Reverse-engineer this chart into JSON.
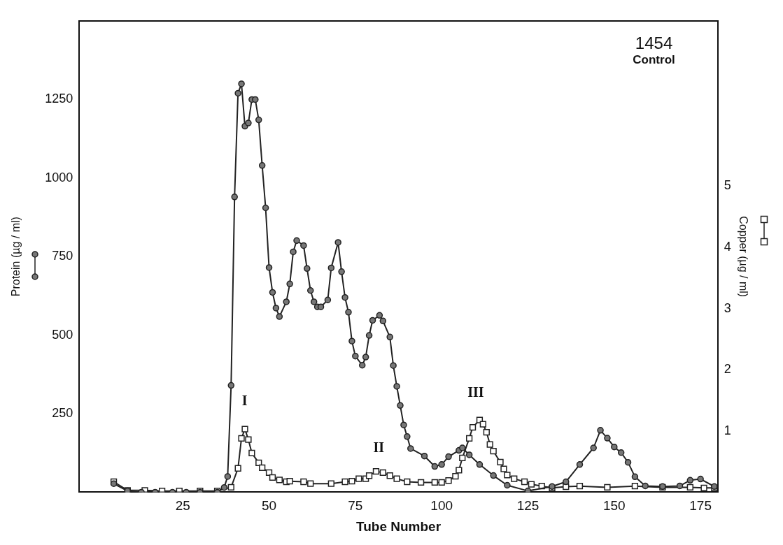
{
  "chart_data": {
    "type": "line",
    "xlabel": "Tube Number",
    "ylabel": "Protein (µg / ml)",
    "y2label": "Copper (µg / ml)",
    "annotations": [
      "1454",
      "Control",
      "I",
      "II",
      "III"
    ],
    "xlim": [
      -5,
      180
    ],
    "xticks": [
      25,
      50,
      75,
      100,
      125,
      150,
      175
    ],
    "ylim": [
      0,
      1500
    ],
    "yticks": [
      250,
      500,
      750,
      1000,
      1250
    ],
    "y2lim": [
      0,
      7.7
    ],
    "y2ticks": [
      1,
      2,
      3,
      4,
      5
    ],
    "grid": false,
    "legend": false,
    "series": [
      {
        "color": "#222222",
        "marker": "circle",
        "x": [
          5,
          9,
          13,
          17,
          22,
          26,
          30,
          35,
          37,
          38,
          39,
          40,
          41,
          42,
          43,
          44,
          45,
          46,
          47,
          48,
          49,
          50,
          51,
          52,
          53,
          55,
          56,
          57,
          58,
          60,
          61,
          62,
          63,
          64,
          65,
          67,
          68,
          70,
          71,
          72,
          73,
          74,
          75,
          77,
          78,
          79,
          80,
          82,
          83,
          85,
          86,
          87,
          88,
          89,
          90,
          91,
          95,
          98,
          100,
          102,
          105,
          106,
          108,
          111,
          115,
          119,
          125,
          132,
          136,
          140,
          144,
          146,
          148,
          150,
          152,
          154,
          156,
          159,
          164,
          169,
          172,
          175,
          179
        ],
        "values": [
          27,
          4,
          0,
          0,
          0,
          0,
          0,
          0,
          15,
          50,
          340,
          940,
          1270,
          1300,
          1165,
          1175,
          1250,
          1250,
          1185,
          1040,
          905,
          715,
          636,
          586,
          559,
          606,
          663,
          765,
          801,
          785,
          712,
          642,
          606,
          590,
          590,
          612,
          714,
          795,
          702,
          620,
          573,
          481,
          433,
          404,
          430,
          499,
          547,
          563,
          545,
          494,
          403,
          337,
          276,
          214,
          177,
          139,
          115,
          82,
          88,
          113,
          133,
          141,
          119,
          88,
          53,
          22,
          4,
          18,
          33,
          88,
          141,
          197,
          172,
          144,
          126,
          95,
          49,
          20,
          18,
          20,
          38,
          42,
          18
        ]
      },
      {
        "color": "#222222",
        "marker": "square",
        "axis": "y2",
        "x": [
          5,
          9,
          14,
          19,
          24,
          30,
          35,
          39,
          41,
          42,
          43,
          44,
          45,
          47,
          48,
          50,
          51,
          53,
          55,
          56,
          60,
          62,
          68,
          72,
          74,
          76,
          78,
          79,
          81,
          83,
          85,
          87,
          90,
          94,
          98,
          100,
          102,
          104,
          105,
          106,
          108,
          109,
          111,
          112,
          113,
          114,
          115,
          117,
          118,
          119,
          121,
          124,
          126,
          129,
          132,
          136,
          140,
          148,
          156,
          164,
          172,
          176,
          179
        ],
        "values": [
          0.17,
          0.03,
          0.03,
          0.02,
          0.02,
          0.02,
          0.02,
          0.08,
          0.39,
          0.88,
          1.03,
          0.86,
          0.64,
          0.48,
          0.4,
          0.32,
          0.24,
          0.2,
          0.17,
          0.18,
          0.17,
          0.14,
          0.14,
          0.17,
          0.18,
          0.22,
          0.22,
          0.27,
          0.34,
          0.32,
          0.27,
          0.22,
          0.17,
          0.16,
          0.16,
          0.16,
          0.19,
          0.26,
          0.36,
          0.56,
          0.88,
          1.06,
          1.18,
          1.11,
          0.98,
          0.78,
          0.67,
          0.49,
          0.38,
          0.28,
          0.22,
          0.17,
          0.13,
          0.1,
          0.07,
          0.09,
          0.1,
          0.08,
          0.1,
          0.08,
          0.08,
          0.07,
          0.07
        ]
      }
    ]
  }
}
